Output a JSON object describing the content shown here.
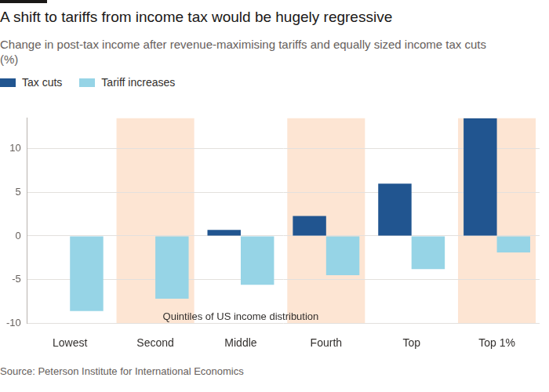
{
  "chart_data": {
    "type": "bar",
    "title": "A shift to tariffs from income tax would be hugely regressive",
    "subtitle": "Change in post-tax income after revenue-maximising tariffs and equally sized income tax cuts (%)",
    "annotation": "Quintiles of US income distribution",
    "source": "Source: Peterson Institute for International Economics",
    "categories": [
      "Lowest",
      "Second",
      "Middle",
      "Fourth",
      "Top",
      "Top 1%"
    ],
    "series": [
      {
        "name": "Tax cuts",
        "color": "#215590",
        "values": [
          0,
          0,
          0.7,
          2.3,
          6.0,
          13.5
        ]
      },
      {
        "name": "Tariff increases",
        "color": "#96d4e6",
        "values": [
          -8.6,
          -7.2,
          -5.6,
          -4.5,
          -3.8,
          -1.9
        ]
      }
    ],
    "ylim": [
      -10,
      13.5
    ],
    "yticks": [
      -10,
      -5,
      0,
      5,
      10
    ],
    "grid": true,
    "legend": "top-left"
  }
}
